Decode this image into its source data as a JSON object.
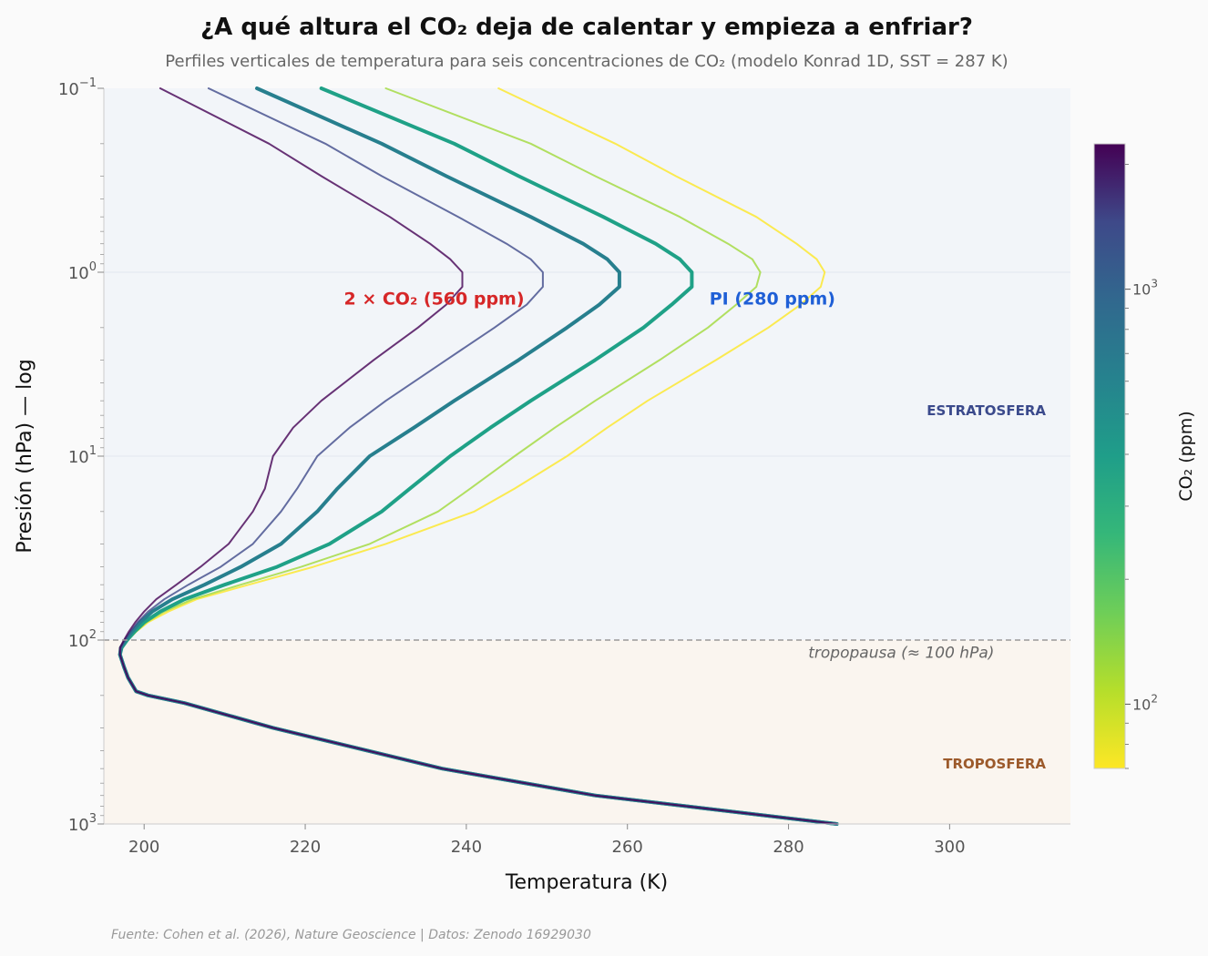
{
  "chart_data": {
    "type": "line",
    "title": "¿A qué altura el CO₂ deja de calentar y empieza a enfriar?",
    "subtitle": "Perfiles verticales de temperatura para seis concentraciones de CO₂ (modelo Konrad 1D, SST = 287 K)",
    "xlabel": "Temperatura (K)",
    "ylabel": "Presión (hPa) — log",
    "xlim": [
      195,
      315
    ],
    "ylim": [
      1000,
      0.1
    ],
    "yscale": "log",
    "x_ticks": [
      "200",
      "220",
      "240",
      "260",
      "280",
      "300"
    ],
    "y_ticks": [
      {
        "base": "10",
        "exp": "−1",
        "value": 0.1
      },
      {
        "base": "10",
        "exp": "0",
        "value": 1
      },
      {
        "base": "10",
        "exp": "1",
        "value": 10
      },
      {
        "base": "10",
        "exp": "2",
        "value": 100
      },
      {
        "base": "10",
        "exp": "3",
        "value": 1000
      }
    ],
    "pressure": [
      0.1,
      0.2,
      0.3,
      0.5,
      0.7,
      0.85,
      1.0,
      1.2,
      1.5,
      2,
      3,
      5,
      7,
      10,
      15,
      20,
      30,
      40,
      50,
      60,
      70,
      80,
      90,
      100,
      110,
      120,
      140,
      160,
      190,
      200,
      220,
      300,
      500,
      700,
      1000
    ],
    "series": [
      {
        "co2": 70,
        "color": "#fde725",
        "width": 2,
        "temps": [
          244,
          258.5,
          266,
          276,
          281,
          283.5,
          284.5,
          284,
          281.5,
          277.5,
          271,
          262.5,
          257.5,
          252.5,
          246,
          241,
          230,
          221,
          213,
          206.5,
          203,
          200.5,
          199,
          198,
          197.2,
          197,
          197.5,
          198,
          199,
          200.5,
          205,
          216,
          237,
          256,
          286
        ]
      },
      {
        "co2": 140,
        "color": "#a0da39",
        "width": 2,
        "temps": [
          230,
          248,
          256,
          266.5,
          272.5,
          275.5,
          276.5,
          276,
          273.5,
          270,
          264,
          256,
          251,
          246,
          240.5,
          236.5,
          228,
          219.5,
          212,
          206,
          202.5,
          200.3,
          199,
          198,
          197.2,
          197,
          197.5,
          198,
          199,
          200.5,
          205,
          216,
          237,
          256,
          286
        ]
      },
      {
        "co2": 280,
        "color": "#1fa187",
        "width": 4,
        "temps": [
          222,
          238.5,
          246.5,
          257,
          263.5,
          266.5,
          268,
          268,
          265.5,
          262,
          256,
          248,
          243,
          238,
          233,
          229.5,
          223,
          216.5,
          210,
          205,
          202,
          200,
          198.8,
          197.9,
          197.2,
          197,
          197.5,
          198,
          199,
          200.5,
          205,
          216,
          237,
          256,
          286
        ]
      },
      {
        "co2": 560,
        "color": "#277f8e",
        "width": 4,
        "temps": [
          214,
          229.5,
          237.5,
          248,
          254.5,
          257.5,
          259,
          259,
          256.5,
          252.5,
          246.5,
          238.5,
          233.5,
          228,
          224,
          221.5,
          217,
          212,
          207.5,
          203.5,
          201,
          199.5,
          198.5,
          197.7,
          197.1,
          197,
          197.5,
          198,
          199,
          200.5,
          205,
          216,
          237,
          256,
          286
        ]
      },
      {
        "co2": 1120,
        "color": "#3e4a89",
        "width": 2,
        "temps": [
          208,
          222.5,
          229.5,
          239,
          245,
          248,
          249.5,
          249.5,
          247.5,
          243.5,
          237.5,
          230,
          225.5,
          221.5,
          219,
          217,
          213.5,
          209.5,
          205.5,
          202.5,
          200.5,
          199.2,
          198.3,
          197.6,
          197.1,
          197,
          197.5,
          198,
          199,
          200.5,
          205,
          216,
          237,
          256,
          286
        ]
      },
      {
        "co2": 2240,
        "color": "#440154",
        "width": 2,
        "temps": [
          202,
          215.5,
          222,
          230.5,
          235.5,
          238,
          239.5,
          239.5,
          237.5,
          234,
          228.5,
          222,
          218.5,
          216,
          215,
          213.5,
          210.5,
          207,
          204,
          201.5,
          200,
          198.9,
          198.1,
          197.5,
          197,
          197,
          197.5,
          198,
          199,
          200.5,
          205,
          216,
          237,
          256,
          286
        ]
      }
    ],
    "annotations": [
      {
        "text": "2 × CO₂ (560 ppm)",
        "x": 236,
        "y": 1.5,
        "color": "#d62728"
      },
      {
        "text": "PI (280 ppm)",
        "x": 278,
        "y": 1.5,
        "color": "#1f5fd6"
      },
      {
        "text": "ESTRATOSFERA",
        "x": 304,
        "y": 6,
        "color": "#3b4a8c"
      },
      {
        "text": "TROPOSFERA",
        "x": 305,
        "y": 500,
        "color": "#9c5a2b"
      },
      {
        "text": "tropopausa  (≈ 100 hPa)",
        "x": 294,
        "y": 125,
        "color": "#666666"
      }
    ],
    "tropopause_hpa": 100,
    "colorbar": {
      "label": "CO₂ (ppm)",
      "scale": "log",
      "range": [
        70,
        2240
      ],
      "colormap": "viridis_r",
      "ticks": [
        {
          "base": "10",
          "exp": "2",
          "value": 100
        },
        {
          "base": "10",
          "exp": "3",
          "value": 1000
        }
      ]
    },
    "grid": false,
    "source": "Fuente: Cohen et al. (2026), Nature Geoscience | Datos: Zenodo 16929030"
  },
  "colors": {
    "stratosphere_bg": "#f2f5f9",
    "troposphere_bg": "#faf5ef",
    "tropopause_line": "#999999"
  }
}
